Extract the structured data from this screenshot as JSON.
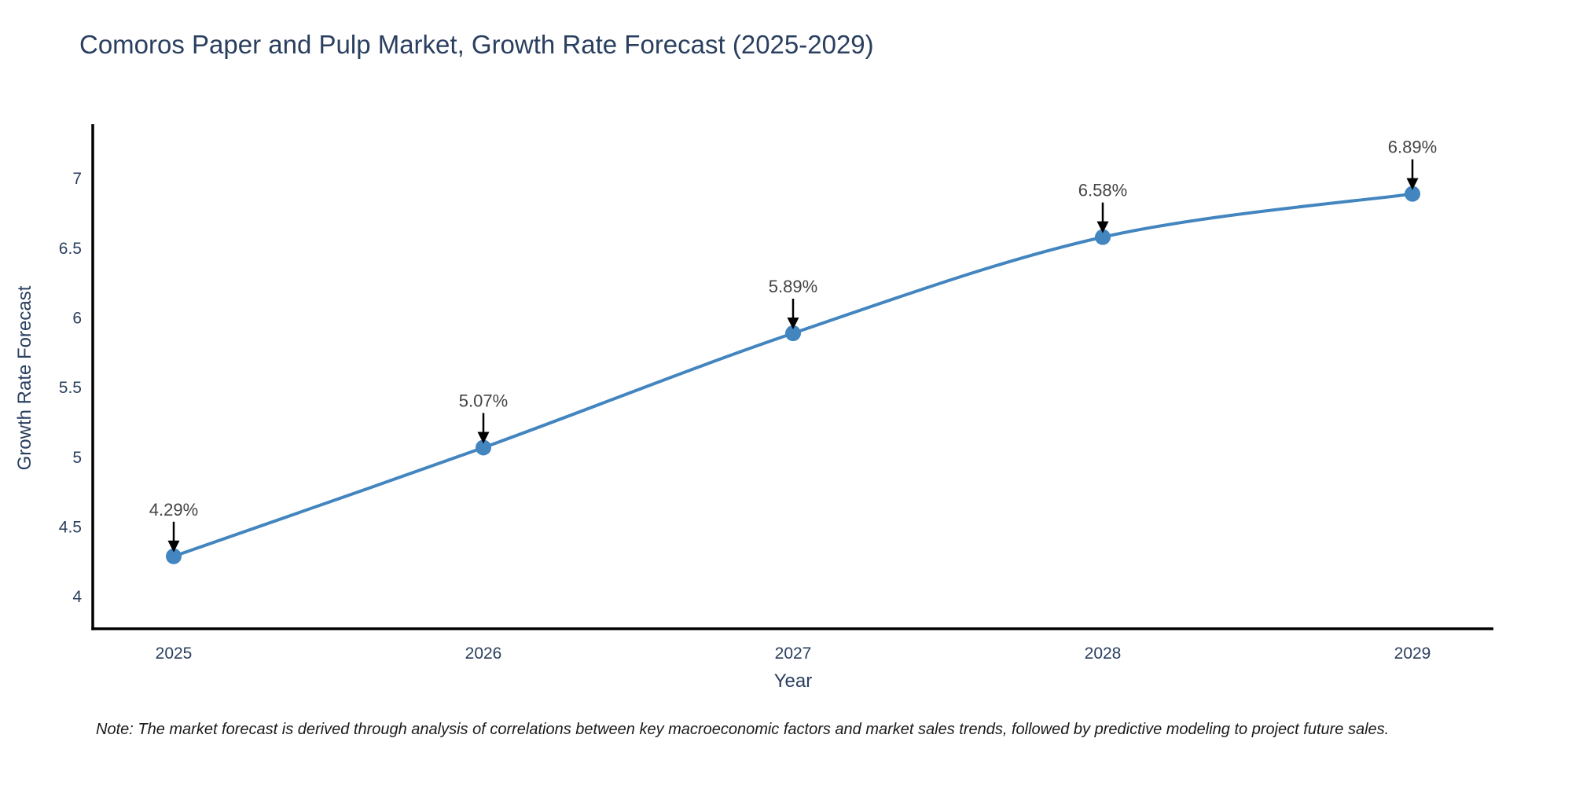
{
  "title": "Comoros Paper and Pulp Market, Growth Rate Forecast (2025-2029)",
  "note": "Note: The market forecast is derived through analysis of correlations between key macroeconomic factors and market sales trends, followed by predictive modeling to project future sales.",
  "chart_data": {
    "type": "line",
    "title": "Comoros Paper and Pulp Market, Growth Rate Forecast (2025-2029)",
    "xlabel": "Year",
    "ylabel": "Growth Rate Forecast",
    "categories": [
      "2025",
      "2026",
      "2027",
      "2028",
      "2029"
    ],
    "series": [
      {
        "name": "Growth Rate Forecast",
        "values": [
          4.29,
          5.07,
          5.89,
          6.58,
          6.89
        ],
        "point_labels": [
          "4.29%",
          "5.07%",
          "5.89%",
          "6.58%",
          "6.89%"
        ]
      }
    ],
    "yticks": [
      4,
      4.5,
      5,
      5.5,
      6,
      6.5,
      7
    ],
    "ylim": [
      3.77,
      7.39
    ],
    "grid": false,
    "legend": false,
    "line_shape": "spline",
    "annotations_have_arrows": true,
    "colors": {
      "line": "#4285bf",
      "marker": "#4285bf",
      "axis": "#000000",
      "arrow": "#000000",
      "tick_text": "#2a3f5f",
      "annotation_text": "#444444",
      "title_text": "#2a3f5f",
      "note_text": "#1a1a1a",
      "background": "#ffffff"
    }
  }
}
